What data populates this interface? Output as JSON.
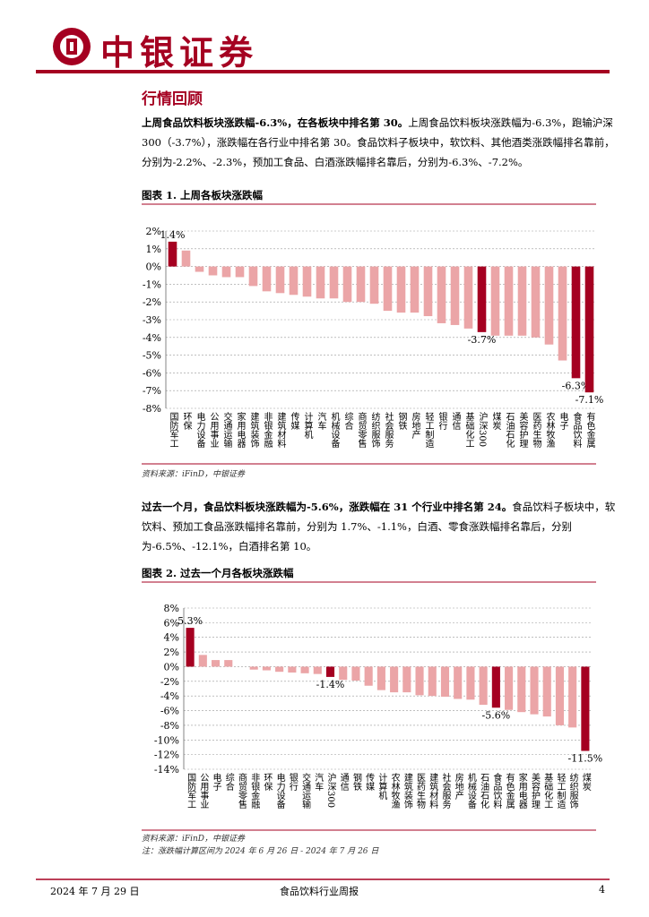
{
  "header": {
    "brand": "中银证券"
  },
  "section_title": "行情回顾",
  "paragraphs": [
    {
      "lead": "上周食品饮料板块涨跌幅-6.3%，在各板块中排名第 30。",
      "text": "上周食品饮料板块涨跌幅为-6.3%，跑输沪深 300（-3.7%），涨跌幅在各行业中排名第 30。食品饮料子板块中，软饮料、其他酒类涨跌幅排名靠前，分别为-2.2%、-2.3%，预加工食品、白酒涨跌幅排名靠后，分别为-6.3%、-7.2%。"
    },
    {
      "lead": "过去一个月，食品饮料板块涨跌幅为-5.6%，涨跌幅在 31 个行业中排名第 24。",
      "text": "食品饮料子板块中，软饮料、预加工食品涨跌幅排名靠前，分别为 1.7%、-1.1%，白酒、零食涨跌幅排名靠后，分别为-6.5%、-12.1%，白酒排名第 10。"
    }
  ],
  "chart_data": [
    {
      "type": "bar",
      "title": "图表 1. 上周各板块涨跌幅",
      "categories": [
        "国防军工",
        "环保",
        "电力设备",
        "公用事业",
        "交通运输",
        "家用电器",
        "建筑装饰",
        "非银金融",
        "建筑材料",
        "传媒",
        "计算机",
        "汽车",
        "机械设备",
        "综合",
        "商贸零售",
        "纺织服饰",
        "社会服务",
        "钢铁",
        "房地产",
        "轻工制造",
        "银行",
        "通信",
        "基础化工",
        "沪深300",
        "煤炭",
        "石油石化",
        "美容护理",
        "医药生物",
        "农林牧渔",
        "电子",
        "食品饮料",
        "有色金属"
      ],
      "values": [
        1.4,
        0.9,
        -0.3,
        -0.5,
        -0.6,
        -0.6,
        -1.1,
        -1.4,
        -1.5,
        -1.6,
        -1.7,
        -1.8,
        -1.8,
        -2.0,
        -2.0,
        -2.1,
        -2.5,
        -2.6,
        -2.6,
        -2.8,
        -3.2,
        -3.3,
        -3.5,
        -3.7,
        -3.9,
        -3.9,
        -3.9,
        -4.0,
        -4.4,
        -5.3,
        -6.3,
        -7.1
      ],
      "value_labels": [
        "1.4%",
        null,
        null,
        null,
        null,
        null,
        null,
        null,
        null,
        null,
        null,
        null,
        null,
        null,
        null,
        null,
        null,
        null,
        null,
        null,
        null,
        null,
        null,
        "-3.7%",
        null,
        null,
        null,
        null,
        null,
        null,
        "-6.3%",
        "-7.1%"
      ],
      "colors": [
        "#a50021",
        "#eba5a7",
        "#eba5a7",
        "#eba5a7",
        "#eba5a7",
        "#eba5a7",
        "#eba5a7",
        "#eba5a7",
        "#eba5a7",
        "#eba5a7",
        "#eba5a7",
        "#eba5a7",
        "#eba5a7",
        "#eba5a7",
        "#eba5a7",
        "#eba5a7",
        "#eba5a7",
        "#eba5a7",
        "#eba5a7",
        "#eba5a7",
        "#eba5a7",
        "#eba5a7",
        "#eba5a7",
        "#a50021",
        "#eba5a7",
        "#eba5a7",
        "#eba5a7",
        "#eba5a7",
        "#eba5a7",
        "#eba5a7",
        "#a50021",
        "#a50021"
      ],
      "ylim": [
        -8,
        2
      ],
      "yticks": [
        {
          "value": 2,
          "label": "2%"
        },
        {
          "value": 1,
          "label": "1%"
        },
        {
          "value": 0,
          "label": "0%"
        },
        {
          "value": -1,
          "label": "-1%"
        },
        {
          "value": -2,
          "label": "-2%"
        },
        {
          "value": -3,
          "label": "-3%"
        },
        {
          "value": -4,
          "label": "-4%"
        },
        {
          "value": -5,
          "label": "-5%"
        },
        {
          "value": -6,
          "label": "-6%"
        },
        {
          "value": -7,
          "label": "-7%"
        },
        {
          "value": -8,
          "label": "-8%"
        }
      ],
      "grid": true,
      "source": "资料来源：iFinD，中银证券"
    },
    {
      "type": "bar",
      "title": "图表 2. 过去一个月各板块涨跌幅",
      "categories": [
        "国防军工",
        "公用事业",
        "电子",
        "综合",
        "商贸零售",
        "非银金融",
        "环保",
        "电力设备",
        "银行",
        "交通运输",
        "汽车",
        "沪深300",
        "通信",
        "钢铁",
        "传媒",
        "计算机",
        "农林牧渔",
        "建筑装饰",
        "医药生物",
        "建筑材料",
        "社会服务",
        "房地产",
        "机械设备",
        "石油石化",
        "食品饮料",
        "有色金属",
        "家用电器",
        "美容护理",
        "基础化工",
        "轻工制造",
        "纺织服饰",
        "煤炭"
      ],
      "values": [
        5.3,
        1.6,
        0.9,
        0.9,
        0,
        -0.4,
        -0.5,
        -0.7,
        -0.8,
        -0.9,
        -1.0,
        -1.4,
        -1.8,
        -1.9,
        -2.6,
        -3.2,
        -3.5,
        -3.5,
        -3.9,
        -4.0,
        -4.1,
        -4.4,
        -4.5,
        -5.2,
        -5.6,
        -5.9,
        -6.2,
        -6.5,
        -6.8,
        -8.0,
        -8.3,
        -11.5
      ],
      "value_labels": [
        "5.3%",
        null,
        null,
        null,
        null,
        null,
        null,
        null,
        null,
        null,
        null,
        "-1.4%",
        null,
        null,
        null,
        null,
        null,
        null,
        null,
        null,
        null,
        null,
        null,
        null,
        "-5.6%",
        null,
        null,
        null,
        null,
        null,
        null,
        "-11.5%"
      ],
      "colors": [
        "#a50021",
        "#eba5a7",
        "#eba5a7",
        "#eba5a7",
        "#eba5a7",
        "#eba5a7",
        "#eba5a7",
        "#eba5a7",
        "#eba5a7",
        "#eba5a7",
        "#eba5a7",
        "#a50021",
        "#eba5a7",
        "#eba5a7",
        "#eba5a7",
        "#eba5a7",
        "#eba5a7",
        "#eba5a7",
        "#eba5a7",
        "#eba5a7",
        "#eba5a7",
        "#eba5a7",
        "#eba5a7",
        "#eba5a7",
        "#a50021",
        "#eba5a7",
        "#eba5a7",
        "#eba5a7",
        "#eba5a7",
        "#eba5a7",
        "#eba5a7",
        "#a50021"
      ],
      "ylim": [
        -14,
        8
      ],
      "yticks": [
        {
          "value": 8,
          "label": "8%"
        },
        {
          "value": 6,
          "label": "6%"
        },
        {
          "value": 4,
          "label": "4%"
        },
        {
          "value": 2,
          "label": "2%"
        },
        {
          "value": 0,
          "label": "0%"
        },
        {
          "value": -2,
          "label": "-2%"
        },
        {
          "value": -4,
          "label": "-4%"
        },
        {
          "value": -6,
          "label": "-6%"
        },
        {
          "value": -8,
          "label": "-8%"
        },
        {
          "value": -10,
          "label": "-10%"
        },
        {
          "value": -12,
          "label": "-12%"
        },
        {
          "value": -14,
          "label": "-14%"
        }
      ],
      "grid": true,
      "source": "资料来源：iFinD，中银证券",
      "note": "注：涨跌幅计算区间为 2024 年 6 月 26 日 - 2024 年 7 月 26 日"
    }
  ],
  "footer": {
    "date": "2024 年 7 月 29 日",
    "title": "食品饮料行业周报",
    "page": "4"
  }
}
